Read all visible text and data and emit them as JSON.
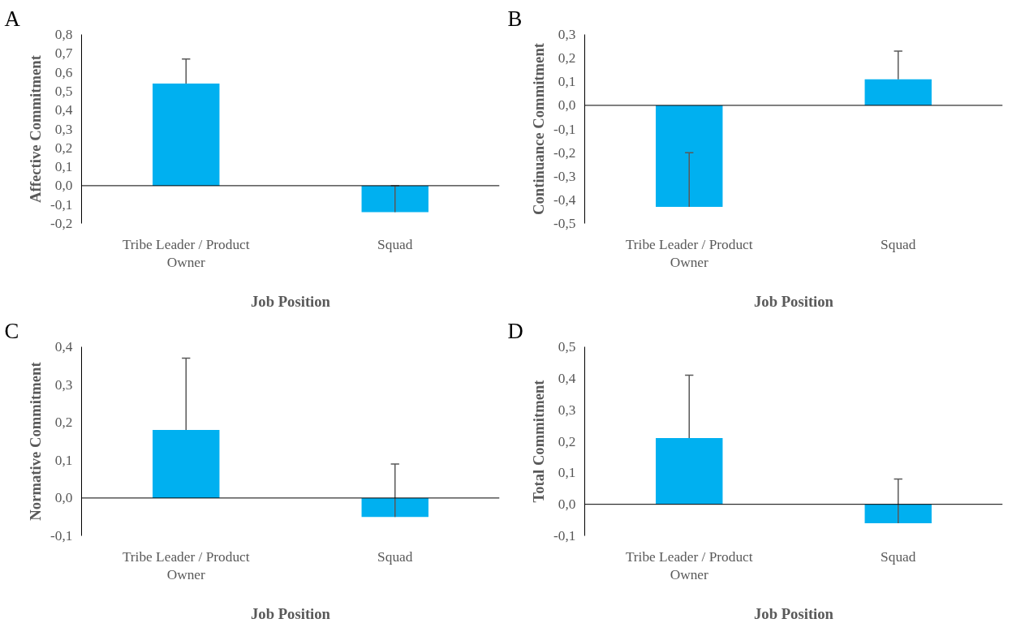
{
  "chart_data": [
    {
      "type": "bar",
      "ref_lines": [
        {
          "axis": "y",
          "value": 0
        }
      ],
      "title": "A",
      "xlabel": "Job Position",
      "ylabel": "Affective Commitment",
      "categories": [
        "Tribe Leader / Product Owner",
        "Squad"
      ],
      "values": [
        0.54,
        -0.14
      ],
      "errors": [
        [
          0.54,
          0.67
        ],
        [
          -0.14,
          0.0
        ]
      ],
      "color": "#00b0f0",
      "ylim": [
        -0.2,
        0.8
      ],
      "yticks": [
        {
          "value": -0.2,
          "label": "-0,2"
        },
        {
          "value": -0.1,
          "label": "-0,1"
        },
        {
          "value": 0,
          "label": "0,0"
        },
        {
          "value": 0.1,
          "label": "0,1"
        },
        {
          "value": 0.2,
          "label": "0,2"
        },
        {
          "value": 0.3,
          "label": "0,3"
        },
        {
          "value": 0.4,
          "label": "0,4"
        },
        {
          "value": 0.5,
          "label": "0,5"
        },
        {
          "value": 0.6,
          "label": "0,6"
        },
        {
          "value": 0.7,
          "label": "0,7"
        },
        {
          "value": 0.8,
          "label": "0,8"
        }
      ],
      "grid": false
    },
    {
      "type": "bar",
      "ref_lines": [
        {
          "axis": "y",
          "value": 0
        }
      ],
      "title": "B",
      "xlabel": "Job Position",
      "ylabel": "Continuance Commitment",
      "categories": [
        "Tribe Leader / Product Owner",
        "Squad"
      ],
      "values": [
        -0.43,
        0.11
      ],
      "errors": [
        [
          -0.43,
          -0.2
        ],
        [
          0.11,
          0.23
        ]
      ],
      "color": "#00b0f0",
      "ylim": [
        -0.5,
        0.3
      ],
      "yticks": [
        {
          "value": -0.5,
          "label": "-0,5"
        },
        {
          "value": -0.4,
          "label": "-0,4"
        },
        {
          "value": -0.3,
          "label": "-0,3"
        },
        {
          "value": -0.2,
          "label": "-0,2"
        },
        {
          "value": -0.1,
          "label": "-0,1"
        },
        {
          "value": 0,
          "label": "0,0"
        },
        {
          "value": 0.1,
          "label": "0,1"
        },
        {
          "value": 0.2,
          "label": "0,2"
        },
        {
          "value": 0.3,
          "label": "0,3"
        }
      ],
      "grid": false
    },
    {
      "type": "bar",
      "ref_lines": [
        {
          "axis": "y",
          "value": 0
        }
      ],
      "title": "C",
      "xlabel": "Job Position",
      "ylabel": "Normative Commitment",
      "categories": [
        "Tribe Leader / Product Owner",
        "Squad"
      ],
      "values": [
        0.18,
        -0.05
      ],
      "errors": [
        [
          0.18,
          0.37
        ],
        [
          -0.05,
          0.09
        ]
      ],
      "color": "#00b0f0",
      "ylim": [
        -0.1,
        0.4
      ],
      "yticks": [
        {
          "value": -0.1,
          "label": "-0,1"
        },
        {
          "value": 0,
          "label": "0,0"
        },
        {
          "value": 0.1,
          "label": "0,1"
        },
        {
          "value": 0.2,
          "label": "0,2"
        },
        {
          "value": 0.3,
          "label": "0,3"
        },
        {
          "value": 0.4,
          "label": "0,4"
        }
      ],
      "grid": false
    },
    {
      "type": "bar",
      "ref_lines": [
        {
          "axis": "y",
          "value": 0
        }
      ],
      "title": "D",
      "xlabel": "Job Position",
      "ylabel": "Total Commitment",
      "categories": [
        "Tribe Leader / Product Owner",
        "Squad"
      ],
      "values": [
        0.21,
        -0.06
      ],
      "errors": [
        [
          0.21,
          0.41
        ],
        [
          -0.06,
          0.08
        ]
      ],
      "color": "#00b0f0",
      "ylim": [
        -0.1,
        0.5
      ],
      "yticks": [
        {
          "value": -0.1,
          "label": "-0,1"
        },
        {
          "value": 0,
          "label": "0,0"
        },
        {
          "value": 0.1,
          "label": "0,1"
        },
        {
          "value": 0.2,
          "label": "0,2"
        },
        {
          "value": 0.3,
          "label": "0,3"
        },
        {
          "value": 0.4,
          "label": "0,4"
        },
        {
          "value": 0.5,
          "label": "0,5"
        }
      ],
      "grid": false
    }
  ]
}
